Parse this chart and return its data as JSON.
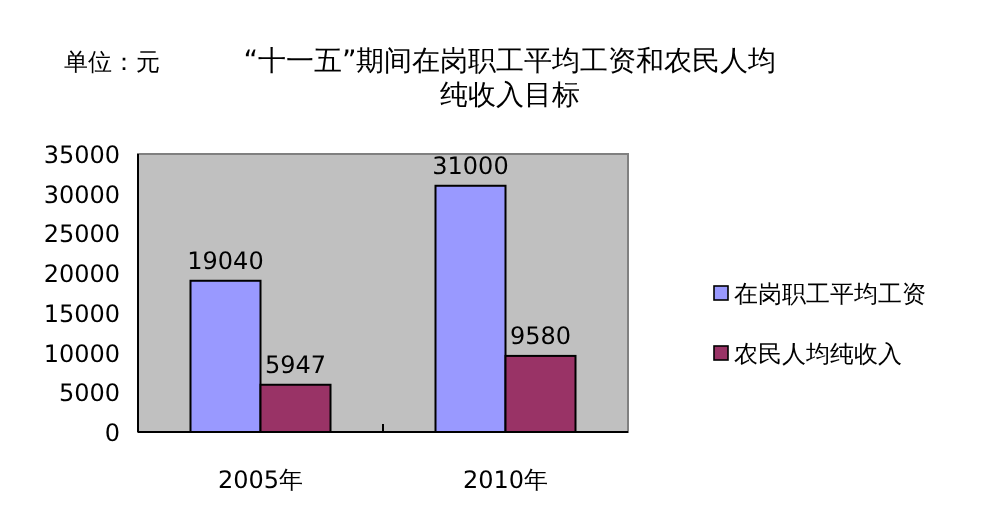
{
  "chart_data": {
    "type": "bar",
    "title": "“十一五”期间在岗职工平均工资和农民人均纯收入目标",
    "annotations": [
      "单位：元"
    ],
    "categories": [
      "2005年",
      "2010年"
    ],
    "series": [
      {
        "name": "在岗职工平均工资",
        "color": "#9999ff",
        "values": [
          19040,
          31000
        ]
      },
      {
        "name": "农民人均纯收入",
        "color": "#993366",
        "values": [
          5947,
          9580
        ]
      }
    ],
    "ylim": [
      0,
      35000
    ],
    "yticks": [
      0,
      5000,
      10000,
      15000,
      20000,
      25000,
      30000,
      35000
    ],
    "data_labels": true,
    "legend": "right",
    "grid": false
  }
}
